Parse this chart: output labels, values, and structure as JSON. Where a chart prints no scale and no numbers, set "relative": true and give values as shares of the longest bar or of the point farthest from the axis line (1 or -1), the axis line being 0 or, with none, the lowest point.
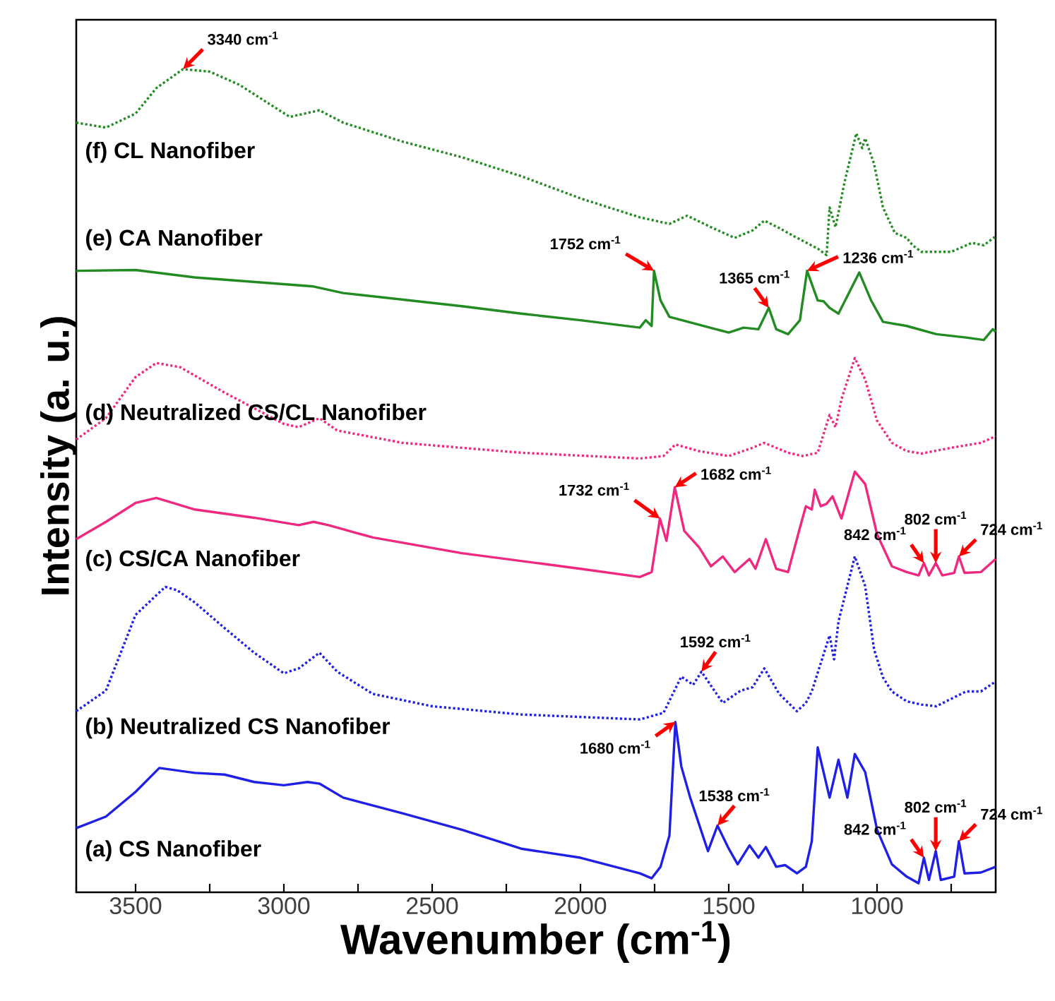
{
  "chart_data": {
    "type": "line",
    "relative": true,
    "xlabel": "Wavenumber (cm$^{-1}$)",
    "ylabel": "Intensity (a. u.)",
    "xlim": [
      3700,
      600
    ],
    "xticks": [
      3500,
      {
        "value": 3250,
        "label": null
      },
      3000,
      {
        "value": 2750,
        "label": null
      },
      2500,
      {
        "value": 2250,
        "label": null
      },
      2000,
      {
        "value": 1750,
        "label": null
      },
      1500,
      {
        "value": 1250,
        "label": null
      },
      1000,
      {
        "value": 750,
        "label": null
      }
    ],
    "series": [
      {
        "name": "(a) CS Nanofiber",
        "color": "#1f1fe6",
        "line_style": "solid",
        "x": [
          3700,
          3600,
          3500,
          3420,
          3300,
          3200,
          3100,
          3000,
          2920,
          2880,
          2800,
          2600,
          2400,
          2200,
          2000,
          1800,
          1760,
          1730,
          1700,
          1680,
          1660,
          1630,
          1570,
          1538,
          1500,
          1470,
          1430,
          1400,
          1375,
          1340,
          1310,
          1270,
          1240,
          1220,
          1200,
          1160,
          1130,
          1100,
          1075,
          1040,
          1000,
          950,
          900,
          860,
          842,
          825,
          802,
          785,
          740,
          724,
          705,
          650,
          600
        ],
        "values": [
          0.078,
          0.092,
          0.122,
          0.151,
          0.145,
          0.143,
          0.134,
          0.13,
          0.134,
          0.132,
          0.115,
          0.096,
          0.076,
          0.053,
          0.042,
          0.023,
          0.017,
          0.031,
          0.069,
          0.207,
          0.153,
          0.115,
          0.05,
          0.081,
          0.053,
          0.034,
          0.057,
          0.042,
          0.055,
          0.031,
          0.033,
          0.023,
          0.031,
          0.062,
          0.176,
          0.115,
          0.161,
          0.115,
          0.168,
          0.146,
          0.076,
          0.034,
          0.019,
          0.011,
          0.042,
          0.015,
          0.05,
          0.015,
          0.019,
          0.062,
          0.023,
          0.024,
          0.031
        ]
      },
      {
        "name": "(b) Neutralized CS Nanofiber",
        "color": "#1f1fe6",
        "line_style": "dotted",
        "x": [
          3700,
          3600,
          3500,
          3400,
          3360,
          3300,
          3200,
          3100,
          3000,
          2950,
          2880,
          2820,
          2700,
          2500,
          2200,
          1800,
          1720,
          1660,
          1620,
          1592,
          1520,
          1460,
          1420,
          1380,
          1330,
          1270,
          1240,
          1220,
          1160,
          1145,
          1130,
          1075,
          1040,
          1010,
          980,
          950,
          900,
          850,
          800,
          700,
          650,
          600
        ],
        "values": [
          0.22,
          0.245,
          0.337,
          0.371,
          0.367,
          0.352,
          0.321,
          0.291,
          0.266,
          0.272,
          0.291,
          0.268,
          0.241,
          0.226,
          0.216,
          0.21,
          0.218,
          0.262,
          0.252,
          0.268,
          0.23,
          0.245,
          0.249,
          0.272,
          0.241,
          0.22,
          0.23,
          0.244,
          0.312,
          0.283,
          0.329,
          0.408,
          0.372,
          0.295,
          0.261,
          0.244,
          0.232,
          0.228,
          0.226,
          0.244,
          0.244,
          0.256
        ]
      },
      {
        "name": "(c) CS/CA Nanofiber",
        "color": "#f0287f",
        "line_style": "solid",
        "x": [
          3700,
          3600,
          3500,
          3430,
          3300,
          3100,
          2950,
          2900,
          2850,
          2700,
          2400,
          2000,
          1800,
          1760,
          1732,
          1710,
          1682,
          1650,
          1600,
          1560,
          1520,
          1480,
          1430,
          1410,
          1375,
          1340,
          1300,
          1260,
          1240,
          1220,
          1210,
          1190,
          1170,
          1150,
          1120,
          1075,
          1040,
          1000,
          950,
          900,
          860,
          842,
          825,
          802,
          780,
          740,
          724,
          705,
          650,
          600
        ],
        "values": [
          0.429,
          0.45,
          0.473,
          0.479,
          0.465,
          0.455,
          0.446,
          0.45,
          0.446,
          0.431,
          0.412,
          0.393,
          0.383,
          0.389,
          0.454,
          0.427,
          0.492,
          0.439,
          0.419,
          0.396,
          0.408,
          0.389,
          0.405,
          0.393,
          0.429,
          0.393,
          0.389,
          0.443,
          0.469,
          0.465,
          0.489,
          0.469,
          0.472,
          0.481,
          0.454,
          0.511,
          0.496,
          0.435,
          0.396,
          0.389,
          0.385,
          0.4,
          0.385,
          0.4,
          0.385,
          0.388,
          0.408,
          0.388,
          0.389,
          0.405
        ]
      },
      {
        "name": "(d) Neutralized CS/CL Nanofiber",
        "color": "#f0287f",
        "line_style": "dotted",
        "x": [
          3700,
          3600,
          3500,
          3430,
          3350,
          3200,
          3000,
          2950,
          2880,
          2820,
          2600,
          2200,
          1800,
          1720,
          1680,
          1600,
          1500,
          1420,
          1380,
          1300,
          1250,
          1200,
          1160,
          1140,
          1120,
          1075,
          1040,
          1000,
          950,
          900,
          850,
          750,
          650,
          600
        ],
        "values": [
          0.55,
          0.576,
          0.626,
          0.643,
          0.638,
          0.607,
          0.569,
          0.565,
          0.576,
          0.561,
          0.546,
          0.534,
          0.527,
          0.53,
          0.544,
          0.536,
          0.53,
          0.54,
          0.546,
          0.534,
          0.53,
          0.534,
          0.58,
          0.565,
          0.599,
          0.649,
          0.623,
          0.573,
          0.546,
          0.536,
          0.533,
          0.54,
          0.546,
          0.554
        ]
      },
      {
        "name": "(e) CA Nanofiber",
        "color": "#228b22",
        "line_style": "solid",
        "x": [
          3700,
          3500,
          3300,
          2900,
          2800,
          2600,
          2400,
          2200,
          2000,
          1800,
          1780,
          1760,
          1752,
          1730,
          1700,
          1500,
          1450,
          1400,
          1365,
          1340,
          1300,
          1260,
          1236,
          1200,
          1180,
          1160,
          1130,
          1060,
          1020,
          980,
          900,
          800,
          700,
          640,
          610,
          600
        ],
        "values": [
          0.755,
          0.756,
          0.747,
          0.736,
          0.728,
          0.72,
          0.712,
          0.703,
          0.695,
          0.686,
          0.695,
          0.688,
          0.755,
          0.719,
          0.699,
          0.68,
          0.686,
          0.684,
          0.71,
          0.684,
          0.678,
          0.695,
          0.755,
          0.719,
          0.718,
          0.71,
          0.703,
          0.753,
          0.719,
          0.693,
          0.688,
          0.678,
          0.674,
          0.671,
          0.684,
          0.681
        ]
      },
      {
        "name": "(f) CL Nanofiber",
        "color": "#228b22",
        "line_style": "dotted",
        "x": [
          3700,
          3600,
          3500,
          3430,
          3340,
          3250,
          3150,
          3050,
          2980,
          2880,
          2800,
          2600,
          2400,
          2200,
          2000,
          1800,
          1700,
          1640,
          1560,
          1480,
          1420,
          1380,
          1330,
          1280,
          1200,
          1170,
          1160,
          1140,
          1110,
          1070,
          1050,
          1040,
          1010,
          980,
          940,
          900,
          880,
          850,
          750,
          680,
          640,
          600
        ],
        "values": [
          0.935,
          0.929,
          0.946,
          0.977,
          1.0,
          0.997,
          0.981,
          0.958,
          0.942,
          0.95,
          0.935,
          0.912,
          0.893,
          0.87,
          0.843,
          0.82,
          0.812,
          0.822,
          0.808,
          0.795,
          0.804,
          0.816,
          0.807,
          0.797,
          0.782,
          0.774,
          0.832,
          0.808,
          0.862,
          0.922,
          0.904,
          0.916,
          0.885,
          0.832,
          0.801,
          0.795,
          0.786,
          0.778,
          0.778,
          0.789,
          0.786,
          0.797
        ]
      }
    ],
    "annotations": [
      {
        "text": "3340 cm$^{-1}$",
        "x": 3340,
        "y": 1.0
      },
      {
        "text": "1752 cm$^{-1}$",
        "x": 1752,
        "y": 0.755
      },
      {
        "text": "1365 cm$^{-1}$",
        "x": 1365,
        "y": 0.71
      },
      {
        "text": "1236 cm$^{-1}$",
        "x": 1236,
        "y": 0.755
      },
      {
        "text": "1732 cm$^{-1}$",
        "x": 1732,
        "y": 0.454
      },
      {
        "text": "1682 cm$^{-1}$",
        "x": 1682,
        "y": 0.492
      },
      {
        "text": "842 cm$^{-1}$",
        "x": 842,
        "y": 0.4
      },
      {
        "text": "802 cm$^{-1}$",
        "x": 802,
        "y": 0.4
      },
      {
        "text": "724 cm$^{-1}$",
        "x": 724,
        "y": 0.408
      },
      {
        "text": "1592 cm$^{-1}$",
        "x": 1592,
        "y": 0.268
      },
      {
        "text": "1680 cm$^{-1}$",
        "x": 1680,
        "y": 0.207
      },
      {
        "text": "1538 cm$^{-1}$",
        "x": 1538,
        "y": 0.081
      },
      {
        "text": "842 cm$^{-1}$",
        "x": 842,
        "y": 0.042
      },
      {
        "text": "802 cm$^{-1}$",
        "x": 802,
        "y": 0.05
      },
      {
        "text": "724 cm$^{-1}$",
        "x": 724,
        "y": 0.062
      }
    ]
  }
}
